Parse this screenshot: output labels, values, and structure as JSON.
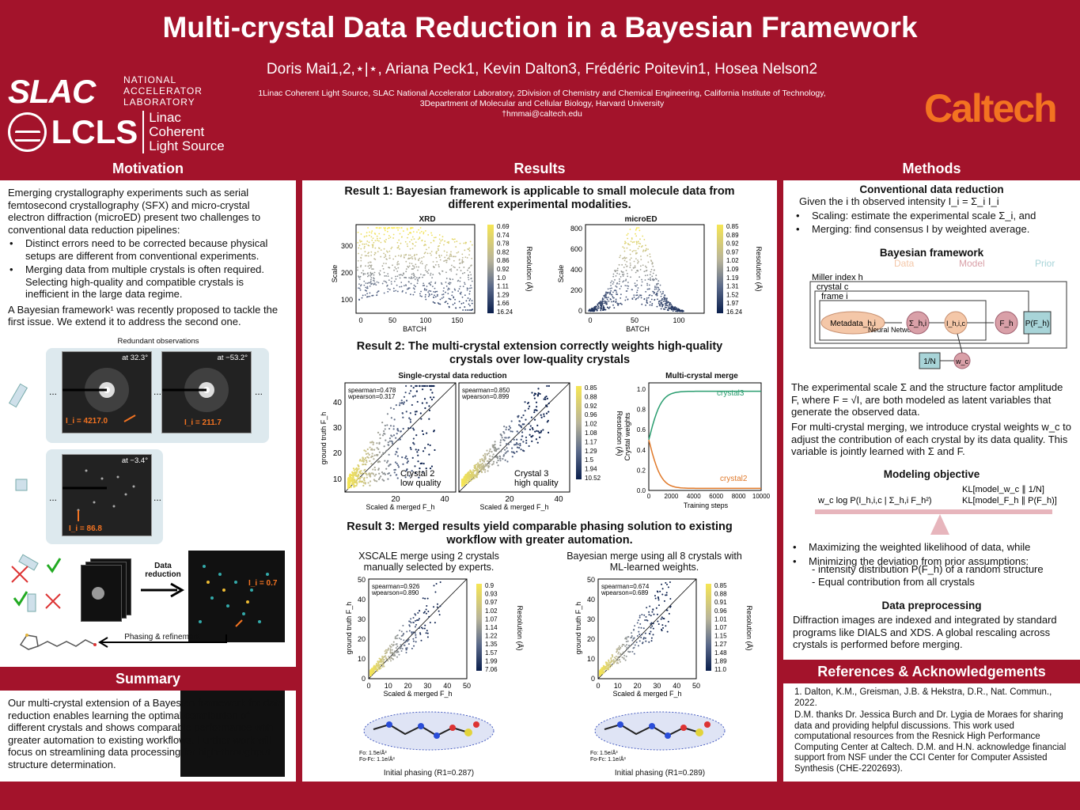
{
  "header": {
    "title": "Multi-crystal Data Reduction in a Bayesian Framework",
    "authors": "Doris Mai1,2,⋆|⋆, Ariana Peck1, Kevin Dalton3, Frédéric Poitevin1, Hosea Nelson2",
    "affil1": "1Linac Coherent Light Source, SLAC National Accelerator Laboratory, 2Division of Chemistry and Chemical Engineering, California Institute of Technology,",
    "affil2": "3Department of Molecular and Cellular Biology, Harvard University",
    "email": "†hmmai@caltech.edu",
    "slac": "SLAC",
    "slac_sub": [
      "NATIONAL",
      "ACCELERATOR",
      "LABORATORY"
    ],
    "lcls": "LCLS",
    "lcls_sub": [
      "Linac Coherent",
      "Light Source"
    ],
    "caltech": "Caltech"
  },
  "motivation": {
    "heading": "Motivation",
    "intro": "Emerging crystallography experiments such as serial femtosecond crystallography (SFX) and micro-crystal electron diffraction (microED) present two challenges to conventional data reduction pipelines:",
    "bullets": [
      "Distinct errors need to be corrected because physical setups are different from conventional experiments.",
      "Merging data from multiple crystals is often required. Selecting high-quality and compatible crystals is inefficient in the large data regime."
    ],
    "closing": "A Bayesian framework¹ was recently proposed to tackle the first issue. We extend it to address the second one.",
    "figure": {
      "redundant": "Redundant observations",
      "angle1": "at 32.3°",
      "angle2": "at −53.2°",
      "angle3": "at −3.4°",
      "i1": "I_i = 4217.0",
      "i2": "I_i = 211.7",
      "i3": "I_i = 86.8",
      "dots": "...",
      "data_reduction": "Data reduction",
      "i_label": "I_i = 0.7",
      "phasing": "Phasing & refinement"
    }
  },
  "summary": {
    "heading": "Summary",
    "text": "Our multi-crystal extension of a Bayesian framework for data reduction enables learning the optimal contribution of different crystals and shows comparable performance with greater automation to existing workflows. Further work will focus on streamlining data processing for high-throughput structure determination."
  },
  "results": {
    "heading": "Results",
    "r1_title": "Result 1: Bayesian framework is applicable to small molecule data from different experimental modalities.",
    "r1_plots": [
      {
        "title": "XRD",
        "ylabel": "Scale",
        "xlabel": "BATCH",
        "yticks": [
          "100",
          "200",
          "300"
        ],
        "xticks": [
          "0",
          "50",
          "100",
          "150"
        ],
        "cbar": [
          "0.69",
          "0.74",
          "0.78",
          "0.82",
          "0.86",
          "0.92",
          "1.0",
          "1.11",
          "1.29",
          "1.66",
          "16.24"
        ],
        "cbar_label": "Resolution (Å)"
      },
      {
        "title": "microED",
        "ylabel": "Scale",
        "xlabel": "BATCH",
        "yticks": [
          "0",
          "200",
          "400",
          "600",
          "800"
        ],
        "xticks": [
          "0",
          "50",
          "100"
        ],
        "cbar": [
          "0.85",
          "0.89",
          "0.92",
          "0.97",
          "1.02",
          "1.09",
          "1.19",
          "1.31",
          "1.52",
          "1.97",
          "16.24"
        ],
        "cbar_label": "Resolution (Å)"
      }
    ],
    "r2_title": "Result 2: The multi-crystal extension correctly weights high-quality crystals over low-quality crystals",
    "r2_single_title": "Single-crystal data reduction",
    "r2_multi_title": "Multi-crystal merge",
    "r2_panels": [
      {
        "stats": [
          "spearman=0.478",
          "wpearson=0.317"
        ],
        "label": [
          "Crystal 2",
          "low quality"
        ]
      },
      {
        "stats": [
          "spearman=0.850",
          "wpearson=0.899"
        ],
        "label": [
          "Crystal 3",
          "high quality"
        ]
      }
    ],
    "r2_ylabel": "ground truth F_h",
    "r2_xlabel": "Scaled & merged F_h",
    "r2_yticks": [
      "10",
      "20",
      "30",
      "40"
    ],
    "r2_xticks": [
      "20",
      "40"
    ],
    "r2_cbar": [
      "0.85",
      "0.88",
      "0.92",
      "0.96",
      "1.02",
      "1.08",
      "1.17",
      "1.29",
      "1.5",
      "1.94",
      "10.52"
    ],
    "r2_cbar_label": "Resolution (Å)",
    "r2_multi_ylabel": "Crystal weights",
    "r2_multi_xlabel": "Training steps",
    "r2_multi_yticks": [
      "0.0",
      "0.2",
      "0.4",
      "0.6",
      "0.8",
      "1.0"
    ],
    "r2_multi_xticks": [
      "0",
      "2000",
      "4000",
      "6000",
      "8000",
      "10000"
    ],
    "r2_multi_series": [
      "crystal3",
      "crystal2"
    ],
    "r3_title": "Result 3: Merged results yield comparable phasing solution to existing workflow with greater automation.",
    "r3_panels": [
      {
        "title": "XSCALE merge using 2 crystals manually selected by experts.",
        "stats": [
          "spearman=0.926",
          "wpearson=0.890"
        ],
        "cbar": [
          "0.9",
          "0.93",
          "0.97",
          "1.02",
          "1.07",
          "1.14",
          "1.22",
          "1.35",
          "1.57",
          "1.99",
          "7.06"
        ],
        "phasing": "Initial phasing (R1=0.287)"
      },
      {
        "title": "Bayesian merge using all 8 crystals with ML-learned weights.",
        "stats": [
          "spearman=0.674",
          "wpearson=0.689"
        ],
        "cbar": [
          "0.85",
          "0.88",
          "0.91",
          "0.96",
          "1.01",
          "1.07",
          "1.15",
          "1.27",
          "1.48",
          "1.89",
          "11.0"
        ],
        "phasing": "Initial phasing (R1=0.289)"
      }
    ],
    "r3_ylabel": "ground truth F_h",
    "r3_xlabel": "Scaled & merged F_h",
    "r3_ticks": [
      "0",
      "10",
      "20",
      "30",
      "40",
      "50"
    ],
    "r3_cbar_label": "Resolution (Å)",
    "density_labels": [
      "Fo: 1.5e/Å³",
      "Fo-Fc: 1.1e/Å³"
    ]
  },
  "methods": {
    "heading": "Methods",
    "conv_title": "Conventional data reduction",
    "conv_intro": "Given the i th observed intensity I_i = Σ_i I_i",
    "conv_bullets": [
      "Scaling: estimate the experimental scale Σ_i, and",
      "Merging: find consensus I by weighted average."
    ],
    "bayes_title": "Bayesian framework",
    "legend": [
      "Data",
      "Model",
      "Prior"
    ],
    "legend_colors": [
      "#f4c7a8",
      "#d9a0a8",
      "#a8d4d8"
    ],
    "diagram": {
      "miller": "Miller index h",
      "crystal": "crystal c",
      "frame": "frame i",
      "metadata": "Metadata_h,i",
      "nn": "Neural Network",
      "sigma": "Σ_h,i",
      "ihic": "I_h,i,c",
      "fh": "F_h",
      "pfh": "P(F_h)",
      "invn": "1/N",
      "wc": "w_c"
    },
    "bayes_text1": "The experimental scale Σ and the structure factor amplitude F, where F = √I, are both modeled as latent variables that generate the observed data.",
    "bayes_text2": "For multi-crystal merging, we introduce crystal weights w_c to adjust the contribution of each crystal by its data quality. This variable is jointly learned with Σ and F.",
    "obj_title": "Modeling objective",
    "obj_left": "w_c log P(I_h,i,c | Σ_h,i F_h²)",
    "obj_right1": "KL[model_w_c ∥ 1/N]",
    "obj_right2": "KL[model_F_h ∥ P(F_h)]",
    "obj_bullets": [
      "Maximizing the weighted likelihood of data, while",
      "Minimizing the deviation from prior assumptions:"
    ],
    "obj_sub": [
      "- intensity distribution P(F_h) of a random structure",
      "- Equal contribution from all crystals"
    ],
    "prep_title": "Data preprocessing",
    "prep_text": "Diffraction images are indexed and integrated by standard programs like DIALS and XDS. A global rescaling across crystals is performed before merging."
  },
  "references": {
    "heading": "References & Acknowledgements",
    "ref1": "1.  Dalton, K.M., Greisman, J.B. & Hekstra, D.R., Nat. Commun., 2022.",
    "ack": "D.M. thanks Dr. Jessica Burch and Dr. Lygia de Moraes for sharing data and providing helpful discussions. This work used computational resources from the Resnick High Performance Computing Center at Caltech. D.M. and H.N. acknowledge financial support from NSF under the CCI Center for Computer Assisted Synthesis (CHE-2202693)."
  }
}
